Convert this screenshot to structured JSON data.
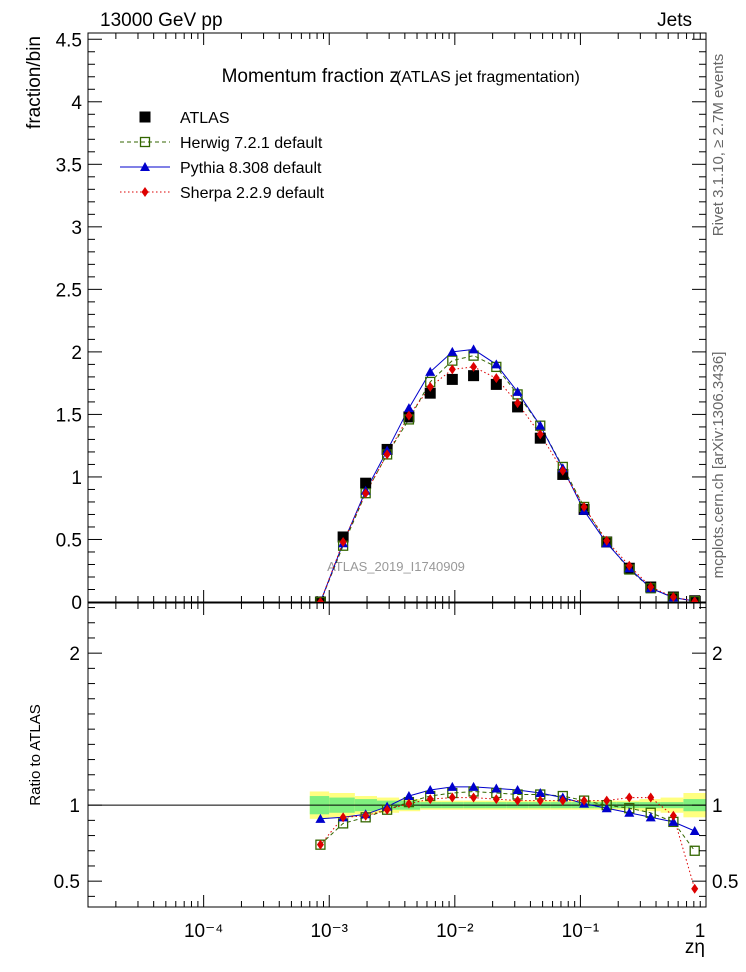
{
  "header": {
    "left": "13000 GeV pp",
    "right": "Jets"
  },
  "side_labels": {
    "rivet": "Rivet 3.1.10, ≥ 2.7M events",
    "mcplots": "mcplots.cern.ch [arXiv:1306.3436]"
  },
  "main": {
    "title": "Momentum fraction z",
    "subtitle": "(ATLAS jet fragmentation)",
    "watermark": "ATLAS_2019_I1740909"
  },
  "chart_data": [
    {
      "type": "scatter",
      "name": "main",
      "xscale": "log",
      "xlim": [
        0.0001,
        1
      ],
      "ylim": [
        0,
        4.55
      ],
      "ylabel": "fraction/bin",
      "yticks": [
        "0",
        "0.5",
        "1",
        "1.5",
        "2",
        "2.5",
        "3",
        "3.5",
        "4",
        "4.5"
      ],
      "legend_position": "top-left",
      "x": [
        0.000851,
        0.00129,
        0.00195,
        0.00289,
        0.00431,
        0.00637,
        0.00955,
        0.0141,
        0.0214,
        0.0316,
        0.0479,
        0.0724,
        0.107,
        0.162,
        0.245,
        0.363,
        0.55,
        0.813
      ],
      "series": [
        {
          "name": "ATLAS",
          "color": "#000000",
          "marker": "square-filled",
          "values": [
            0.0,
            0.52,
            0.95,
            1.22,
            1.48,
            1.67,
            1.78,
            1.81,
            1.74,
            1.56,
            1.31,
            1.02,
            0.74,
            0.48,
            0.27,
            0.12,
            0.04,
            0.01
          ]
        },
        {
          "name": "Herwig 7.2.1 default",
          "color": "#336600",
          "marker": "square-open",
          "line": "dashed",
          "values": [
            0.0,
            0.45,
            0.87,
            1.18,
            1.46,
            1.76,
            1.93,
            1.97,
            1.88,
            1.66,
            1.41,
            1.08,
            0.76,
            0.48,
            0.26,
            0.11,
            0.035,
            0.007
          ]
        },
        {
          "name": "Pythia 8.308 default",
          "color": "#0000cc",
          "marker": "triangle-filled",
          "line": "solid",
          "values": [
            0.0,
            0.47,
            0.89,
            1.21,
            1.55,
            1.84,
            2.0,
            2.02,
            1.9,
            1.68,
            1.41,
            1.07,
            0.73,
            0.47,
            0.27,
            0.11,
            0.035,
            0.008
          ]
        },
        {
          "name": "Sherpa 2.2.9 default",
          "color": "#dd0000",
          "marker": "diamond-filled",
          "line": "dotted",
          "values": [
            0.0,
            0.48,
            0.87,
            1.18,
            1.49,
            1.72,
            1.86,
            1.88,
            1.79,
            1.59,
            1.34,
            1.05,
            0.76,
            0.49,
            0.29,
            0.12,
            0.04,
            0.005
          ]
        }
      ]
    },
    {
      "type": "scatter",
      "name": "ratio",
      "xscale": "log",
      "xlim": [
        0.0001,
        1
      ],
      "ylim": [
        0.33,
        2.33
      ],
      "ylabel": "Ratio to ATLAS",
      "xlabel": "zη",
      "yticks": [
        "0.5",
        "1",
        "2"
      ],
      "xticks": [
        "10⁻⁴",
        "10⁻³",
        "10⁻²",
        "10⁻¹",
        "1"
      ],
      "band_edges": [
        0.0007,
        0.001,
        0.0016,
        0.0024,
        0.0036,
        0.0053,
        0.0079,
        0.0118,
        0.0174,
        0.0259,
        0.0385,
        0.0575,
        0.0851,
        0.129,
        0.195,
        0.295,
        0.435,
        0.661,
        1.0
      ],
      "band_inner": [
        0.06,
        0.05,
        0.04,
        0.03,
        0.03,
        0.02,
        0.02,
        0.02,
        0.02,
        0.02,
        0.02,
        0.02,
        0.02,
        0.02,
        0.02,
        0.02,
        0.02,
        0.04
      ],
      "band_outer": [
        0.09,
        0.08,
        0.06,
        0.05,
        0.04,
        0.03,
        0.03,
        0.03,
        0.03,
        0.03,
        0.03,
        0.03,
        0.03,
        0.03,
        0.03,
        0.04,
        0.05,
        0.08
      ],
      "x": [
        0.000851,
        0.00129,
        0.00195,
        0.00289,
        0.00431,
        0.00637,
        0.00955,
        0.0141,
        0.0214,
        0.0316,
        0.0479,
        0.0724,
        0.107,
        0.162,
        0.245,
        0.363,
        0.55,
        0.813
      ],
      "series": [
        {
          "name": "Herwig 7.2.1 default",
          "color": "#336600",
          "marker": "square-open",
          "line": "dashed",
          "values": [
            0.74,
            0.88,
            0.92,
            0.97,
            1.02,
            1.06,
            1.08,
            1.09,
            1.08,
            1.07,
            1.07,
            1.06,
            1.03,
            1.0,
            0.98,
            0.95,
            0.89,
            0.7
          ]
        },
        {
          "name": "Pythia 8.308 default",
          "color": "#0000cc",
          "marker": "triangle-filled",
          "line": "solid",
          "values": [
            0.91,
            0.92,
            0.94,
            0.99,
            1.06,
            1.1,
            1.12,
            1.12,
            1.11,
            1.1,
            1.08,
            1.05,
            1.01,
            0.98,
            0.95,
            0.92,
            0.89,
            0.83
          ]
        },
        {
          "name": "Sherpa 2.2.9 default",
          "color": "#dd0000",
          "marker": "diamond-filled",
          "line": "dotted",
          "values": [
            0.74,
            0.92,
            0.93,
            0.97,
            1.01,
            1.04,
            1.05,
            1.05,
            1.04,
            1.03,
            1.03,
            1.03,
            1.03,
            1.03,
            1.05,
            1.05,
            0.93,
            0.45
          ]
        }
      ]
    }
  ]
}
